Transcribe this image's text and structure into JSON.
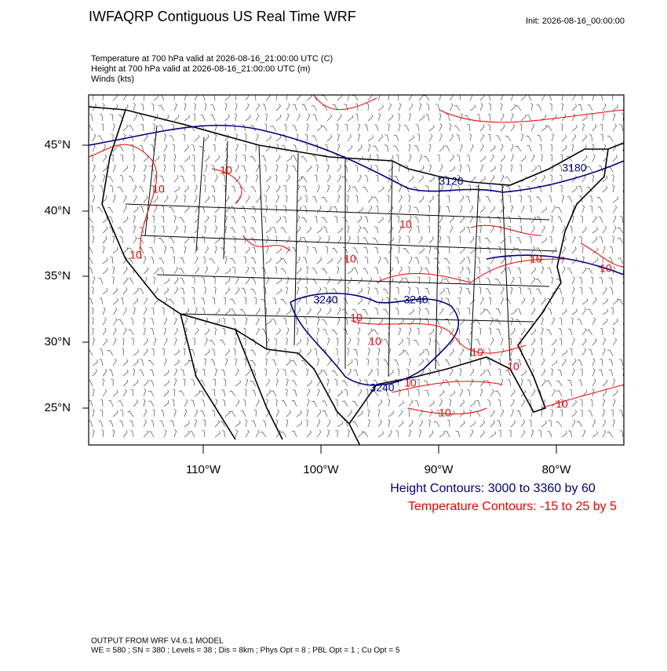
{
  "header": {
    "title": "IWFAQRP Contiguous US Real Time WRF",
    "init": "Init: 2026-08-16_00:00:00"
  },
  "fields": [
    "Temperature at 700 hPa valid at 2026-08-16_21:00:00 UTC   (C)",
    "Height at 700 hPa valid at 2026-08-16_21:00:00 UTC   (m)",
    "Winds   (kts)"
  ],
  "map": {
    "lat_labels": [
      "45°N",
      "40°N",
      "35°N",
      "30°N",
      "25°N"
    ],
    "lon_labels": [
      "110°W",
      "100°W",
      "90°W",
      "80°W"
    ],
    "height_labels": [
      "3120",
      "3180",
      "3240",
      "3240",
      "3240"
    ],
    "temperature_labels": [
      "10",
      "10",
      "10",
      "10",
      "10",
      "10",
      "10",
      "10",
      "10",
      "10",
      "10",
      "10",
      "10",
      "10"
    ]
  },
  "legend": [
    "Height Contours: 3000 to 3360 by 60",
    "Temperature Contours: -15 to 25 by 5"
  ],
  "footer": [
    "OUTPUT FROM WRF V4.6.1 MODEL",
    "WE = 580 ; SN = 380 ; Levels = 38 ; Dis = 8km ; Phys Opt = 8 ; PBL Opt = 1 ; Cu Opt = 5"
  ]
}
